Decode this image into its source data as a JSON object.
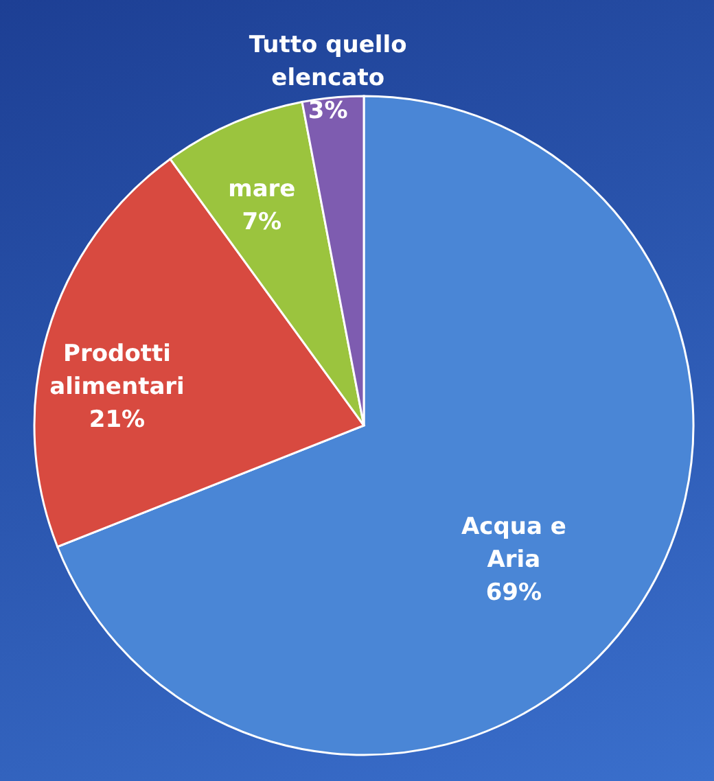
{
  "chart_data": {
    "type": "pie",
    "categories": [
      "Acqua e\nAria",
      "Prodotti\nalimentari",
      "mare",
      "Tutto quello\nelencato"
    ],
    "values": [
      69,
      21,
      7,
      3
    ],
    "value_labels": [
      "69%",
      "21%",
      "7%",
      "3%"
    ],
    "colors": [
      "#4a86d6",
      "#d84a40",
      "#9bc43e",
      "#7e5cb0"
    ]
  }
}
